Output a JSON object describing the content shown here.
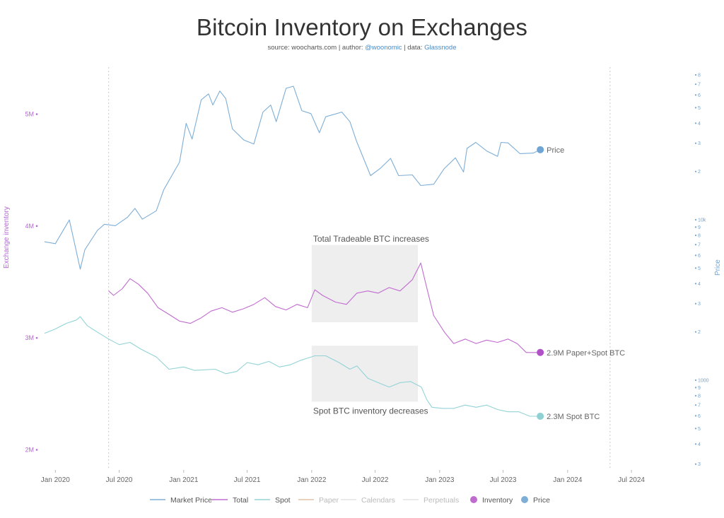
{
  "chart_data": {
    "type": "line",
    "title": "Bitcoin Inventory on Exchanges",
    "subtitle": {
      "prefix": "source: woocharts.com | author: ",
      "author": "@woonomic",
      "mid": " | data: ",
      "data_source": "Glassnode"
    },
    "ylabel_left": "Exchange inventory",
    "ylabel_right": "Price",
    "x_ticks": [
      "Jan 2020",
      "Jul 2020",
      "Jan 2021",
      "Jul 2021",
      "Jan 2022",
      "Jul 2022",
      "Jan 2023",
      "Jul 2023",
      "Jan 2024",
      "Jul 2024"
    ],
    "xlim": [
      "2019-11-15",
      "2024-07-25"
    ],
    "y_left": {
      "ticks": [
        "2M",
        "3M",
        "4M",
        "5M"
      ],
      "values": [
        2000000,
        3000000,
        4000000,
        5000000
      ],
      "ylim": [
        1820000,
        5420000
      ]
    },
    "y_right_scale": "log",
    "y_right_ticks": [
      "3",
      "4",
      "5",
      "6",
      "7",
      "8",
      "9",
      "1000",
      "2",
      "3",
      "4",
      "5",
      "6",
      "7",
      "8",
      "9",
      "10k",
      "2",
      "3",
      "4",
      "5",
      "6",
      "7",
      "8"
    ],
    "series": [
      {
        "name": "Market Price",
        "axis": "right",
        "color": "#7eaed6",
        "points": [
          [
            "2019-12-01",
            7400
          ],
          [
            "2020-01-01",
            7200
          ],
          [
            "2020-02-10",
            10100
          ],
          [
            "2020-03-12",
            5000
          ],
          [
            "2020-03-25",
            6600
          ],
          [
            "2020-04-30",
            8700
          ],
          [
            "2020-05-20",
            9500
          ],
          [
            "2020-06-20",
            9300
          ],
          [
            "2020-07-25",
            10500
          ],
          [
            "2020-08-15",
            11900
          ],
          [
            "2020-09-05",
            10200
          ],
          [
            "2020-10-15",
            11500
          ],
          [
            "2020-11-05",
            15500
          ],
          [
            "2020-11-25",
            18500
          ],
          [
            "2020-12-20",
            23000
          ],
          [
            "2021-01-08",
            40000
          ],
          [
            "2021-01-25",
            32000
          ],
          [
            "2021-02-20",
            56000
          ],
          [
            "2021-03-13",
            61000
          ],
          [
            "2021-03-25",
            52000
          ],
          [
            "2021-04-14",
            63500
          ],
          [
            "2021-05-01",
            57000
          ],
          [
            "2021-05-20",
            37000
          ],
          [
            "2021-06-22",
            31500
          ],
          [
            "2021-07-20",
            29800
          ],
          [
            "2021-08-15",
            47000
          ],
          [
            "2021-09-06",
            52000
          ],
          [
            "2021-09-22",
            41000
          ],
          [
            "2021-10-20",
            66000
          ],
          [
            "2021-11-10",
            68000
          ],
          [
            "2021-12-04",
            48000
          ],
          [
            "2021-12-30",
            46000
          ],
          [
            "2022-01-23",
            35000
          ],
          [
            "2022-02-10",
            44000
          ],
          [
            "2022-03-28",
            47000
          ],
          [
            "2022-04-20",
            41000
          ],
          [
            "2022-05-09",
            31000
          ],
          [
            "2022-06-18",
            19000
          ],
          [
            "2022-07-15",
            21000
          ],
          [
            "2022-08-14",
            24300
          ],
          [
            "2022-09-06",
            19000
          ],
          [
            "2022-10-15",
            19200
          ],
          [
            "2022-11-08",
            16500
          ],
          [
            "2022-12-15",
            16800
          ],
          [
            "2023-01-14",
            21000
          ],
          [
            "2023-02-15",
            24500
          ],
          [
            "2023-03-10",
            20000
          ],
          [
            "2023-03-20",
            28000
          ],
          [
            "2023-04-14",
            30500
          ],
          [
            "2023-05-15",
            27000
          ],
          [
            "2023-06-15",
            25000
          ],
          [
            "2023-06-25",
            30500
          ],
          [
            "2023-07-15",
            30300
          ],
          [
            "2023-08-18",
            26000
          ],
          [
            "2023-09-25",
            26200
          ],
          [
            "2023-10-15",
            27500
          ]
        ],
        "end_label": "Price"
      },
      {
        "name": "Total",
        "axis": "left",
        "color": "#c06ccf",
        "points": [
          [
            "2020-06-01",
            3420000
          ],
          [
            "2020-06-15",
            3380000
          ],
          [
            "2020-07-10",
            3440000
          ],
          [
            "2020-08-01",
            3530000
          ],
          [
            "2020-08-25",
            3480000
          ],
          [
            "2020-09-20",
            3400000
          ],
          [
            "2020-10-20",
            3270000
          ],
          [
            "2020-11-20",
            3210000
          ],
          [
            "2020-12-20",
            3150000
          ],
          [
            "2021-01-20",
            3130000
          ],
          [
            "2021-02-20",
            3180000
          ],
          [
            "2021-03-20",
            3240000
          ],
          [
            "2021-04-20",
            3270000
          ],
          [
            "2021-05-20",
            3230000
          ],
          [
            "2021-06-20",
            3260000
          ],
          [
            "2021-07-20",
            3300000
          ],
          [
            "2021-08-20",
            3360000
          ],
          [
            "2021-09-20",
            3280000
          ],
          [
            "2021-10-20",
            3250000
          ],
          [
            "2021-11-20",
            3300000
          ],
          [
            "2021-12-20",
            3270000
          ],
          [
            "2022-01-10",
            3430000
          ],
          [
            "2022-02-01",
            3380000
          ],
          [
            "2022-03-10",
            3320000
          ],
          [
            "2022-04-10",
            3300000
          ],
          [
            "2022-05-10",
            3400000
          ],
          [
            "2022-06-10",
            3420000
          ],
          [
            "2022-07-10",
            3400000
          ],
          [
            "2022-08-10",
            3450000
          ],
          [
            "2022-09-10",
            3420000
          ],
          [
            "2022-10-15",
            3520000
          ],
          [
            "2022-11-08",
            3670000
          ],
          [
            "2022-11-25",
            3450000
          ],
          [
            "2022-12-15",
            3200000
          ],
          [
            "2023-01-15",
            3050000
          ],
          [
            "2023-02-10",
            2950000
          ],
          [
            "2023-03-15",
            2990000
          ],
          [
            "2023-04-15",
            2950000
          ],
          [
            "2023-05-15",
            2980000
          ],
          [
            "2023-06-15",
            2960000
          ],
          [
            "2023-07-15",
            2990000
          ],
          [
            "2023-08-10",
            2950000
          ],
          [
            "2023-09-05",
            2870000
          ],
          [
            "2023-10-15",
            2870000
          ]
        ],
        "end_label": "2.9M Paper+Spot BTC"
      },
      {
        "name": "Spot",
        "axis": "left",
        "color": "#93d3d6",
        "points": [
          [
            "2019-12-01",
            3040000
          ],
          [
            "2020-01-01",
            3080000
          ],
          [
            "2020-02-01",
            3130000
          ],
          [
            "2020-03-01",
            3160000
          ],
          [
            "2020-03-12",
            3190000
          ],
          [
            "2020-04-01",
            3110000
          ],
          [
            "2020-05-01",
            3050000
          ],
          [
            "2020-06-01",
            2990000
          ],
          [
            "2020-07-01",
            2940000
          ],
          [
            "2020-08-01",
            2960000
          ],
          [
            "2020-09-01",
            2900000
          ],
          [
            "2020-10-15",
            2830000
          ],
          [
            "2020-11-20",
            2720000
          ],
          [
            "2021-01-01",
            2740000
          ],
          [
            "2021-02-01",
            2710000
          ],
          [
            "2021-04-01",
            2720000
          ],
          [
            "2021-05-01",
            2680000
          ],
          [
            "2021-06-01",
            2700000
          ],
          [
            "2021-07-01",
            2780000
          ],
          [
            "2021-08-01",
            2760000
          ],
          [
            "2021-09-01",
            2790000
          ],
          [
            "2021-10-01",
            2740000
          ],
          [
            "2021-11-01",
            2760000
          ],
          [
            "2021-12-01",
            2800000
          ],
          [
            "2022-01-10",
            2840000
          ],
          [
            "2022-02-10",
            2840000
          ],
          [
            "2022-03-20",
            2780000
          ],
          [
            "2022-04-20",
            2720000
          ],
          [
            "2022-05-10",
            2750000
          ],
          [
            "2022-06-10",
            2640000
          ],
          [
            "2022-07-10",
            2600000
          ],
          [
            "2022-08-10",
            2560000
          ],
          [
            "2022-09-10",
            2600000
          ],
          [
            "2022-10-10",
            2610000
          ],
          [
            "2022-11-10",
            2560000
          ],
          [
            "2022-11-25",
            2450000
          ],
          [
            "2022-12-10",
            2380000
          ],
          [
            "2023-01-10",
            2370000
          ],
          [
            "2023-02-10",
            2370000
          ],
          [
            "2023-03-15",
            2400000
          ],
          [
            "2023-04-15",
            2380000
          ],
          [
            "2023-05-15",
            2400000
          ],
          [
            "2023-06-15",
            2360000
          ],
          [
            "2023-07-15",
            2340000
          ],
          [
            "2023-08-15",
            2340000
          ],
          [
            "2023-09-15",
            2300000
          ],
          [
            "2023-10-15",
            2300000
          ]
        ],
        "end_label": "2.3M Spot BTC"
      }
    ],
    "annotations": [
      {
        "text": "Total Tradeable BTC increases",
        "from": "2022-01-01",
        "to": "2022-10-31",
        "y_top": 3830000,
        "y_bottom": 3140000
      },
      {
        "text": "Spot BTC inventory decreases",
        "from": "2022-01-01",
        "to": "2022-10-31",
        "y_top": 2930000,
        "y_bottom": 2430000
      }
    ],
    "vertical_markers": [
      "2020-06-01",
      "2024-05-01"
    ],
    "legend": {
      "placement": "bottom",
      "items": [
        {
          "label": "Market Price",
          "kind": "line",
          "color": "#7eaed6"
        },
        {
          "label": "Total",
          "kind": "line",
          "color": "#c06ccf"
        },
        {
          "label": "Spot",
          "kind": "line",
          "color": "#93d3d6"
        },
        {
          "label": "Paper",
          "kind": "line",
          "color": "#e0c3a8"
        },
        {
          "label": "Calendars",
          "kind": "line",
          "color": "#e4e4e4"
        },
        {
          "label": "Perpetuals",
          "kind": "line",
          "color": "#e4e4e4"
        },
        {
          "label": "Inventory",
          "kind": "dot",
          "color": "#c06ccf"
        },
        {
          "label": "Price",
          "kind": "dot",
          "color": "#7eaed6"
        }
      ]
    }
  }
}
